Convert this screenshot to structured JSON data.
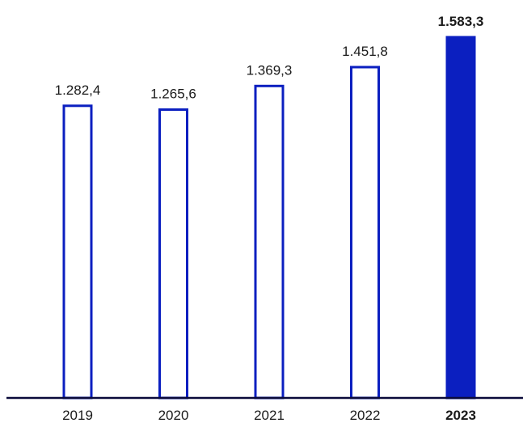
{
  "chart_data": {
    "type": "bar",
    "title": "",
    "xlabel": "",
    "ylabel": "",
    "categories": [
      "2019",
      "2020",
      "2021",
      "2022",
      "2023"
    ],
    "values": [
      1282.4,
      1265.6,
      1369.3,
      1451.8,
      1583.3
    ],
    "value_labels": [
      "1.282,4",
      "1.265,6",
      "1.369,3",
      "1.451,8",
      "1.583,3"
    ],
    "highlighted_index": 4,
    "ylim": [
      0,
      1583.3
    ],
    "grid": false,
    "legend": "none"
  },
  "colors": {
    "bar_stroke": "#0b1fc0",
    "highlight_fill": "#0b1fc0",
    "axis": "#0a0a3a",
    "text": "#1a1a1a"
  }
}
